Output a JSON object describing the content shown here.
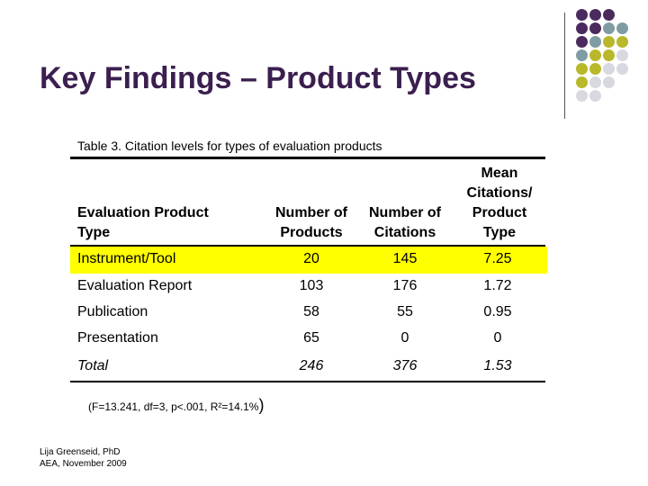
{
  "slide": {
    "title": "Key Findings – Product Types"
  },
  "decor": {
    "dot_colors": [
      "#4b2a5e",
      "#7f9ca3",
      "#b8b82a",
      "#d8d8e0"
    ]
  },
  "table": {
    "caption": "Table 3.  Citation levels for types of evaluation products",
    "headers": {
      "type_line1": "Evaluation Product",
      "type_line2": "Type",
      "products_line1": "Number of",
      "products_line2": "Products",
      "citations_line1": "Number of",
      "citations_line2": "Citations",
      "mean_line1": "Mean",
      "mean_line2": "Citations/",
      "mean_line3": "Product",
      "mean_line4": "Type"
    },
    "rows": [
      {
        "type": "Instrument/Tool",
        "products": "20",
        "citations": "145",
        "mean": "7.25",
        "highlighted": true
      },
      {
        "type": "Evaluation Report",
        "products": "103",
        "citations": "176",
        "mean": "1.72"
      },
      {
        "type": "Publication",
        "products": "58",
        "citations": "55",
        "mean": "0.95"
      },
      {
        "type": "Presentation",
        "products": "65",
        "citations": "0",
        "mean": "0"
      }
    ],
    "total": {
      "type": "Total",
      "products": "246",
      "citations": "376",
      "mean": "1.53"
    },
    "highlight_color": "#ffff00"
  },
  "stats": {
    "text": "(F=13.241, df=3, p<.001, R²=14.1%",
    "close_paren": ")"
  },
  "footer": {
    "author": "Lija Greenseid, PhD",
    "event": "AEA, November 2009"
  }
}
